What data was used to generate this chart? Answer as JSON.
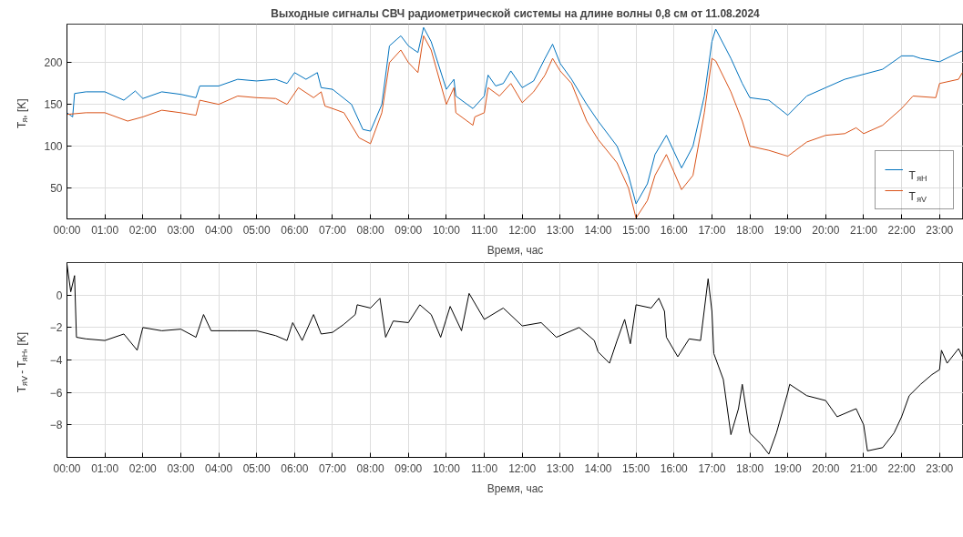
{
  "chart_data": [
    {
      "type": "line",
      "title": "Выходные сигналы СВЧ радиометрической системы на длине волны 0,8 см от 11.08.2024",
      "xlabel": "Время, час",
      "ylabel": "T$_{я}$, [K]",
      "xlim": [
        0,
        23.63
      ],
      "ylim": [
        13,
        246
      ],
      "yticks": [
        50,
        100,
        150,
        200
      ],
      "xticks": [
        {
          "value": 0,
          "label": "00:00"
        },
        {
          "value": 1,
          "label": "01:00"
        },
        {
          "value": 2,
          "label": "02:00"
        },
        {
          "value": 3,
          "label": "03:00"
        },
        {
          "value": 4,
          "label": "04:00"
        },
        {
          "value": 5,
          "label": "05:00"
        },
        {
          "value": 6,
          "label": "06:00"
        },
        {
          "value": 7,
          "label": "07:00"
        },
        {
          "value": 8,
          "label": "08:00"
        },
        {
          "value": 9,
          "label": "09:00"
        },
        {
          "value": 10,
          "label": "10:00"
        },
        {
          "value": 11,
          "label": "11:00"
        },
        {
          "value": 12,
          "label": "12:00"
        },
        {
          "value": 13,
          "label": "13:00"
        },
        {
          "value": 14,
          "label": "14:00"
        },
        {
          "value": 15,
          "label": "15:00"
        },
        {
          "value": 16,
          "label": "16:00"
        },
        {
          "value": 17,
          "label": "17:00"
        },
        {
          "value": 18,
          "label": "18:00"
        },
        {
          "value": 19,
          "label": "19:00"
        },
        {
          "value": 20,
          "label": "20:00"
        },
        {
          "value": 21,
          "label": "21:00"
        },
        {
          "value": 22,
          "label": "22:00"
        },
        {
          "value": 23,
          "label": "23:00"
        }
      ],
      "grid": true,
      "legend": "bottom right",
      "series": [
        {
          "name": "T$_{яH}$",
          "color": "#0072bd",
          "x": [
            0,
            0.15,
            0.2,
            0.5,
            1,
            1.5,
            1.8,
            2,
            2.5,
            3,
            3.4,
            3.5,
            4,
            4.5,
            5,
            5.5,
            5.8,
            6,
            6.3,
            6.6,
            6.7,
            7,
            7.5,
            7.8,
            8,
            8.3,
            8.5,
            8.8,
            9,
            9.25,
            9.4,
            9.6,
            10,
            10.2,
            10.25,
            10.7,
            11,
            11.1,
            11.3,
            11.5,
            11.7,
            12,
            12.3,
            12.6,
            12.8,
            13,
            13.3,
            13.7,
            14,
            14.5,
            14.8,
            15,
            15.3,
            15.5,
            15.8,
            16.2,
            16.5,
            16.8,
            17,
            17.1,
            17.5,
            17.8,
            18,
            18.5,
            19,
            19.5,
            20,
            20.5,
            21,
            21.5,
            22,
            22.3,
            22.5,
            23,
            23.5,
            23.6
          ],
          "values": [
            140,
            135,
            163,
            165,
            165,
            155,
            166,
            157,
            165,
            162,
            158,
            172,
            172,
            180,
            178,
            180,
            175,
            188,
            180,
            188,
            170,
            168,
            150,
            120,
            118,
            150,
            220,
            232,
            220,
            212,
            242,
            225,
            168,
            180,
            160,
            145,
            160,
            185,
            172,
            175,
            190,
            170,
            178,
            205,
            222,
            199,
            180,
            150,
            130,
            100,
            65,
            31,
            55,
            90,
            113,
            74,
            100,
            160,
            225,
            240,
            205,
            175,
            158,
            155,
            137,
            160,
            170,
            180,
            186,
            192,
            208,
            208,
            205,
            201,
            212,
            214
          ]
        },
        {
          "name": "T$_{яV}$",
          "color": "#d95319",
          "x": [
            0,
            0.5,
            1,
            1.6,
            2,
            2.5,
            3,
            3.4,
            3.5,
            4,
            4.5,
            5,
            5.5,
            5.8,
            6.1,
            6.5,
            6.7,
            6.8,
            7,
            7.3,
            7.7,
            8,
            8.3,
            8.5,
            8.8,
            9,
            9.25,
            9.4,
            9.6,
            10,
            10.2,
            10.25,
            10.7,
            10.75,
            11,
            11.1,
            11.4,
            11.7,
            12,
            12.3,
            12.6,
            12.8,
            13,
            13.3,
            13.7,
            14,
            14.5,
            14.8,
            15,
            15.3,
            15.5,
            15.8,
            16.2,
            16.5,
            16.8,
            17,
            17.1,
            17.5,
            17.8,
            18,
            18.5,
            19,
            19.5,
            20,
            20.5,
            20.8,
            21,
            21.5,
            22,
            22.3,
            22.9,
            23,
            23.5,
            23.6
          ],
          "values": [
            138,
            140,
            140,
            130,
            135,
            143,
            140,
            137,
            155,
            150,
            160,
            158,
            157,
            150,
            170,
            158,
            165,
            148,
            145,
            140,
            110,
            103,
            140,
            200,
            215,
            200,
            188,
            232,
            215,
            150,
            170,
            140,
            125,
            135,
            140,
            170,
            160,
            175,
            152,
            165,
            185,
            205,
            190,
            175,
            130,
            108,
            80,
            50,
            14,
            35,
            65,
            90,
            48,
            65,
            140,
            205,
            202,
            165,
            130,
            100,
            95,
            88,
            105,
            113,
            115,
            122,
            115,
            125,
            145,
            160,
            158,
            175,
            180,
            188
          ]
        }
      ]
    },
    {
      "type": "line",
      "xlabel": "Время, час",
      "ylabel": "T$_{яV}$ - T$_{яH}$, [K]",
      "xlim": [
        0,
        23.63
      ],
      "ylim": [
        -10,
        2
      ],
      "yticks": [
        -8,
        -6,
        -4,
        -2,
        0
      ],
      "xticks": [
        {
          "value": 0,
          "label": "00:00"
        },
        {
          "value": 1,
          "label": "01:00"
        },
        {
          "value": 2,
          "label": "02:00"
        },
        {
          "value": 3,
          "label": "03:00"
        },
        {
          "value": 4,
          "label": "04:00"
        },
        {
          "value": 5,
          "label": "05:00"
        },
        {
          "value": 6,
          "label": "06:00"
        },
        {
          "value": 7,
          "label": "07:00"
        },
        {
          "value": 8,
          "label": "08:00"
        },
        {
          "value": 9,
          "label": "09:00"
        },
        {
          "value": 10,
          "label": "10:00"
        },
        {
          "value": 11,
          "label": "11:00"
        },
        {
          "value": 12,
          "label": "12:00"
        },
        {
          "value": 13,
          "label": "13:00"
        },
        {
          "value": 14,
          "label": "14:00"
        },
        {
          "value": 15,
          "label": "15:00"
        },
        {
          "value": 16,
          "label": "16:00"
        },
        {
          "value": 17,
          "label": "17:00"
        },
        {
          "value": 18,
          "label": "18:00"
        },
        {
          "value": 19,
          "label": "19:00"
        },
        {
          "value": 20,
          "label": "20:00"
        },
        {
          "value": 21,
          "label": "21:00"
        },
        {
          "value": 22,
          "label": "22:00"
        },
        {
          "value": 23,
          "label": "23:00"
        }
      ],
      "grid": true,
      "series": [
        {
          "color": "#000000",
          "x": [
            0,
            0.1,
            0.2,
            0.25,
            0.5,
            1,
            1.5,
            1.85,
            2,
            2.5,
            3,
            3.4,
            3.6,
            3.8,
            4.5,
            5,
            5.5,
            5.8,
            5.95,
            6.2,
            6.5,
            6.7,
            7,
            7.3,
            7.6,
            7.65,
            8,
            8.25,
            8.4,
            8.6,
            9,
            9.3,
            9.6,
            9.85,
            10.1,
            10.4,
            10.6,
            11,
            11.5,
            12,
            12.5,
            12.9,
            13.5,
            13.9,
            14,
            14.3,
            14.5,
            14.7,
            14.85,
            15,
            15.4,
            15.6,
            15.75,
            15.8,
            16.1,
            16.4,
            16.7,
            16.9,
            17,
            17.05,
            17.3,
            17.5,
            17.7,
            17.8,
            18,
            18.3,
            18.5,
            18.7,
            19,
            19.05,
            19.5,
            20,
            20.3,
            20.8,
            21,
            21.1,
            21.5,
            21.8,
            22,
            22.2,
            22.5,
            22.8,
            23,
            23.05,
            23.2,
            23.5,
            23.6
          ],
          "values": [
            1.9,
            0.2,
            1.2,
            -2.6,
            -2.7,
            -2.8,
            -2.4,
            -3.4,
            -2.0,
            -2.2,
            -2.1,
            -2.6,
            -1.2,
            -2.2,
            -2.2,
            -2.2,
            -2.5,
            -2.8,
            -1.7,
            -2.8,
            -1.2,
            -2.4,
            -2.3,
            -1.8,
            -1.2,
            -0.6,
            -0.8,
            -0.2,
            -2.6,
            -1.6,
            -1.7,
            -0.6,
            -1.2,
            -2.6,
            -0.7,
            -2.2,
            0.1,
            -1.5,
            -0.8,
            -1.9,
            -1.7,
            -2.6,
            -2.0,
            -2.8,
            -3.5,
            -4.2,
            -2.8,
            -1.5,
            -3.0,
            -0.6,
            -0.8,
            -0.2,
            -1.0,
            -2.6,
            -3.8,
            -2.7,
            -2.8,
            1.0,
            -1.0,
            -3.6,
            -5.2,
            -8.6,
            -7.0,
            -5.5,
            -8.5,
            -9.2,
            -9.8,
            -8.5,
            -6.0,
            -5.5,
            -6.2,
            -6.5,
            -7.5,
            -7.0,
            -8.0,
            -9.6,
            -9.4,
            -8.5,
            -7.5,
            -6.2,
            -5.5,
            -4.9,
            -4.6,
            -3.4,
            -4.2,
            -3.3,
            -3.8
          ]
        }
      ]
    }
  ]
}
